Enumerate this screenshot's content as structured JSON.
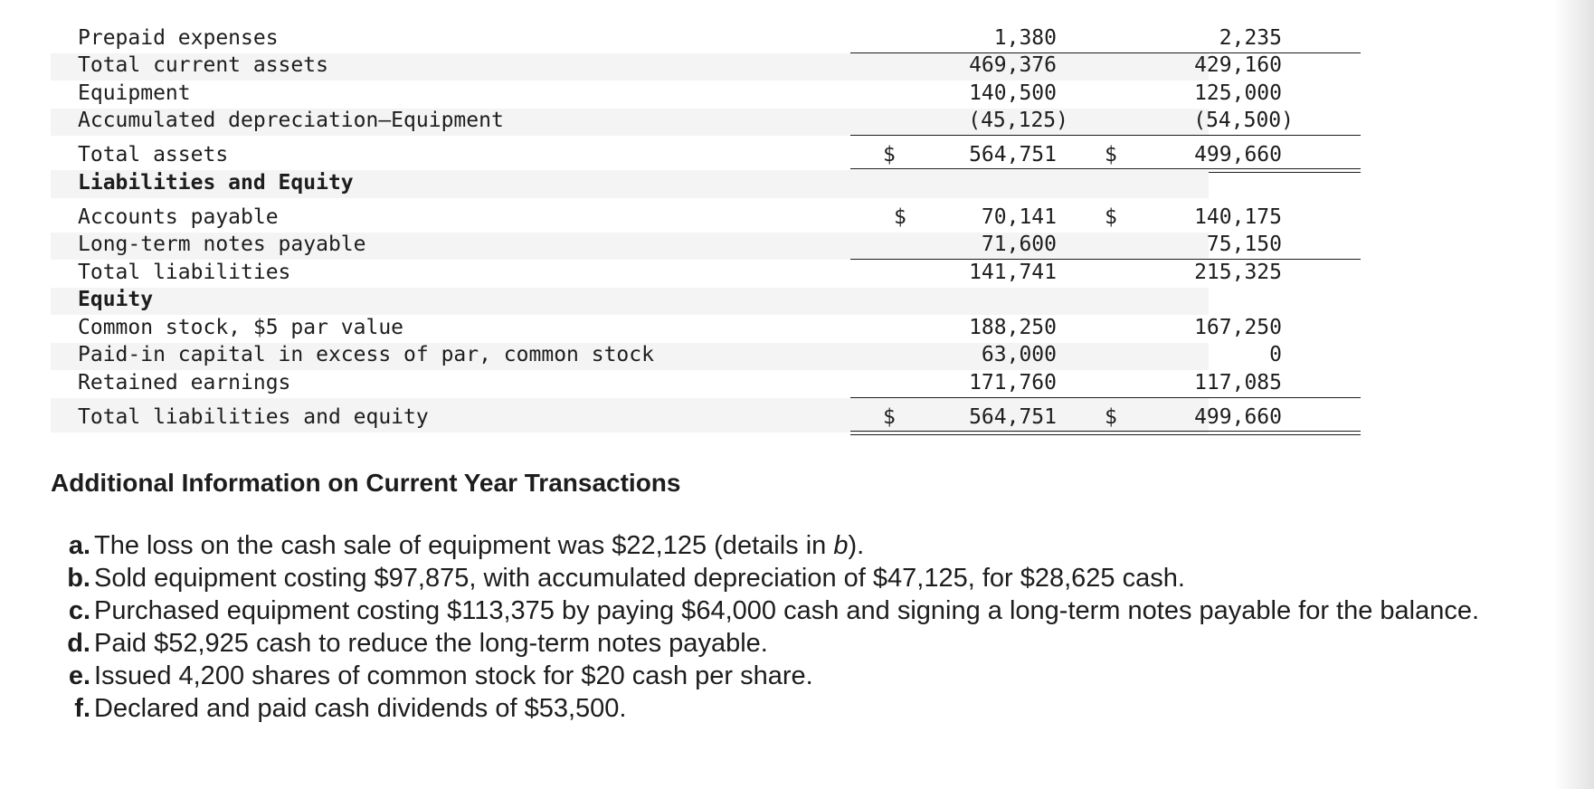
{
  "balance_sheet": {
    "rows": [
      {
        "label": "Prepaid expenses",
        "c1": "1,380",
        "c2": "2,235"
      },
      {
        "label": "Total current assets",
        "c1": "469,376",
        "c2": "429,160"
      },
      {
        "label": "Equipment",
        "c1": "140,500",
        "c2": "125,000"
      },
      {
        "label": "Accumulated depreciation—Equipment",
        "c1": "(45,125)",
        "c2": "(54,500)"
      },
      {
        "label": "Total assets",
        "c1_dollar": "$",
        "c1": "564,751",
        "c2_dollar": "$",
        "c2": "499,660"
      },
      {
        "label": "Liabilities and Equity"
      },
      {
        "label": "Accounts payable",
        "c1_dollar": "$",
        "c1": "70,141",
        "c2_dollar": "$",
        "c2": "140,175"
      },
      {
        "label": "Long-term notes payable",
        "c1": "71,600",
        "c2": "75,150"
      },
      {
        "label": "Total liabilities",
        "c1": "141,741",
        "c2": "215,325"
      },
      {
        "label": "Equity"
      },
      {
        "label": "Common stock, $5 par value",
        "c1": "188,250",
        "c2": "167,250"
      },
      {
        "label": "Paid-in capital in excess of par, common stock",
        "c1": "63,000",
        "c2": "0"
      },
      {
        "label": "Retained earnings",
        "c1": "171,760",
        "c2": "117,085"
      },
      {
        "label": "Total liabilities and equity",
        "c1_dollar": "$",
        "c1": "564,751",
        "c2_dollar": "$",
        "c2": "499,660"
      }
    ]
  },
  "additional_info": {
    "title": "Additional Information on Current Year Transactions",
    "items": [
      {
        "letter": "a.",
        "text": "The loss on the cash sale of equipment was $22,125 (details in ",
        "em": "b",
        "after": ")."
      },
      {
        "letter": "b.",
        "text": "Sold equipment costing $97,875, with accumulated depreciation of $47,125, for $28,625 cash."
      },
      {
        "letter": "c.",
        "text": "Purchased equipment costing $113,375 by paying $64,000 cash and signing a long-term notes payable for the balance."
      },
      {
        "letter": "d.",
        "text": "Paid $52,925 cash to reduce the long-term notes payable."
      },
      {
        "letter": "e.",
        "text": "Issued 4,200 shares of common stock for $20 cash per share."
      },
      {
        "letter": "f.",
        "text": "Declared and paid cash dividends of $53,500."
      }
    ]
  }
}
